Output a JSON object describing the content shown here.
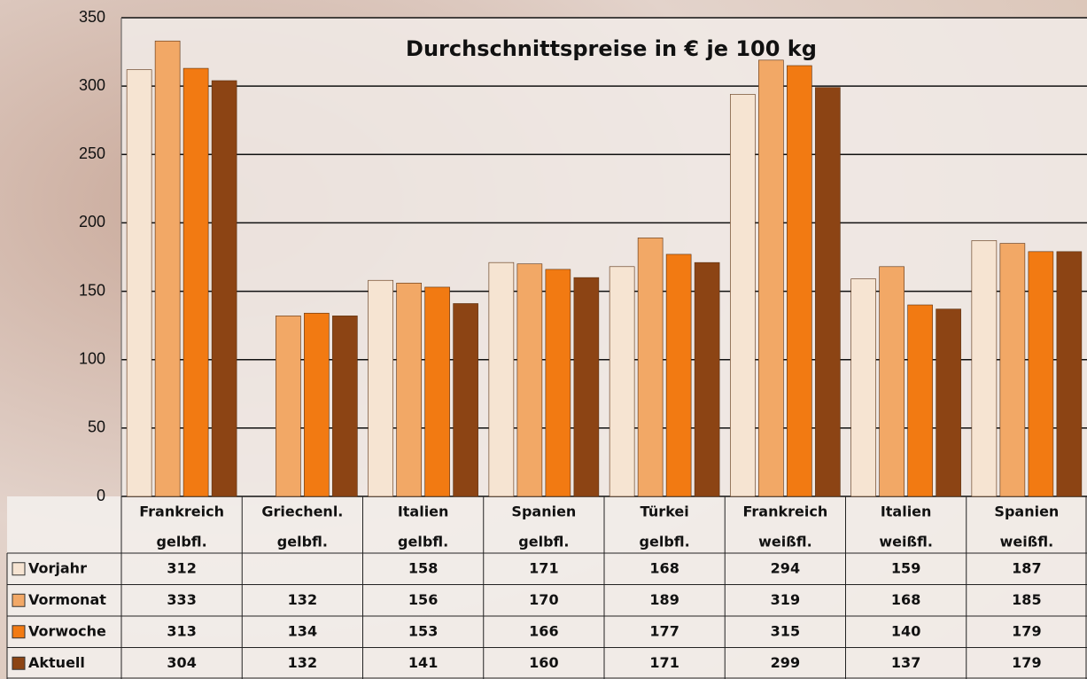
{
  "chart_data": {
    "type": "bar",
    "title": "Durchschnittspreise in € je 100 kg",
    "categories": [
      [
        "Frankreich",
        "gelbfl."
      ],
      [
        "Griechenl.",
        "gelbfl."
      ],
      [
        "Italien",
        "gelbfl."
      ],
      [
        "Spanien",
        "gelbfl."
      ],
      [
        "Türkei",
        "gelbfl."
      ],
      [
        "Frankreich",
        "weißfl."
      ],
      [
        "Italien",
        "weißfl."
      ],
      [
        "Spanien",
        "weißfl."
      ]
    ],
    "series": [
      {
        "name": "Vorjahr",
        "color": "#f6e4d2",
        "values": [
          312,
          null,
          158,
          171,
          168,
          294,
          159,
          187
        ]
      },
      {
        "name": "Vormonat",
        "color": "#f2a866",
        "values": [
          333,
          132,
          156,
          170,
          189,
          319,
          168,
          185
        ]
      },
      {
        "name": "Vorwoche",
        "color": "#f27a12",
        "values": [
          313,
          134,
          153,
          166,
          177,
          315,
          140,
          179
        ]
      },
      {
        "name": "Aktuell",
        "color": "#8c4414",
        "values": [
          304,
          132,
          141,
          160,
          171,
          299,
          137,
          179
        ]
      }
    ],
    "ylim": [
      0,
      350
    ],
    "yticks": [
      0,
      50,
      100,
      150,
      200,
      250,
      300,
      350
    ],
    "grid": true
  }
}
